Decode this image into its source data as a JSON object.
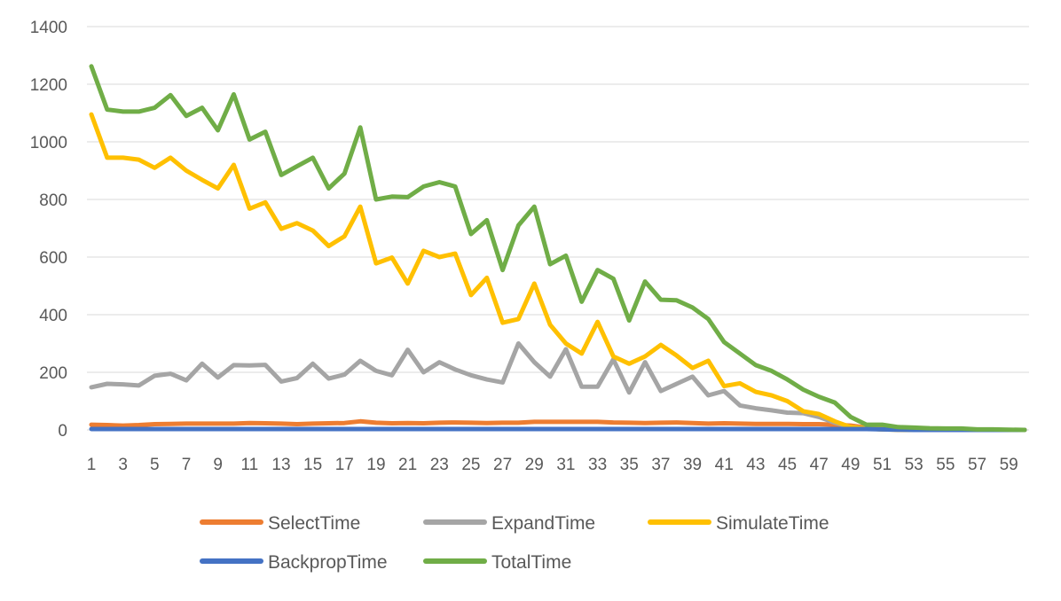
{
  "chart_data": {
    "type": "line",
    "title": "",
    "xlabel": "",
    "ylabel": "",
    "ylim": [
      0,
      1400
    ],
    "y_ticks": [
      0,
      200,
      400,
      600,
      800,
      1000,
      1200,
      1400
    ],
    "x": [
      1,
      2,
      3,
      4,
      5,
      6,
      7,
      8,
      9,
      10,
      11,
      12,
      13,
      14,
      15,
      16,
      17,
      18,
      19,
      20,
      21,
      22,
      23,
      24,
      25,
      26,
      27,
      28,
      29,
      30,
      31,
      32,
      33,
      34,
      35,
      36,
      37,
      38,
      39,
      40,
      41,
      42,
      43,
      44,
      45,
      46,
      47,
      48,
      49,
      50,
      51,
      52,
      53,
      54,
      55,
      56,
      57,
      58,
      59,
      60
    ],
    "x_tick_labels": [
      "1",
      "3",
      "5",
      "7",
      "9",
      "11",
      "13",
      "15",
      "17",
      "19",
      "21",
      "23",
      "25",
      "27",
      "29",
      "31",
      "33",
      "35",
      "37",
      "39",
      "41",
      "43",
      "45",
      "47",
      "49",
      "51",
      "53",
      "55",
      "57",
      "59"
    ],
    "grid": true,
    "legend_position": "bottom",
    "series": [
      {
        "name": "SelectTime",
        "color": "#ED7D31",
        "values": [
          18,
          17,
          15,
          17,
          20,
          21,
          22,
          22,
          22,
          22,
          24,
          23,
          22,
          20,
          22,
          23,
          24,
          30,
          25,
          23,
          24,
          23,
          25,
          26,
          25,
          24,
          25,
          25,
          28,
          28,
          28,
          28,
          28,
          26,
          25,
          24,
          25,
          26,
          24,
          22,
          23,
          22,
          21,
          21,
          21,
          20,
          20,
          18,
          15,
          8,
          3,
          1,
          0,
          0,
          0,
          0,
          0,
          0,
          0,
          0
        ]
      },
      {
        "name": "ExpandTime",
        "color": "#A5A5A5",
        "values": [
          148,
          160,
          158,
          154,
          188,
          195,
          172,
          230,
          182,
          225,
          224,
          226,
          168,
          180,
          230,
          178,
          192,
          240,
          205,
          190,
          278,
          200,
          235,
          210,
          190,
          175,
          165,
          300,
          235,
          185,
          280,
          150,
          150,
          245,
          130,
          235,
          135,
          160,
          185,
          120,
          135,
          85,
          75,
          68,
          60,
          58,
          45,
          25,
          10,
          5,
          2,
          1,
          0,
          0,
          0,
          0,
          0,
          0,
          0,
          0
        ]
      },
      {
        "name": "SimulateTime",
        "color": "#FFC000",
        "values": [
          1095,
          945,
          945,
          938,
          910,
          945,
          900,
          868,
          838,
          920,
          768,
          790,
          698,
          718,
          692,
          638,
          672,
          775,
          578,
          598,
          508,
          622,
          600,
          612,
          468,
          528,
          372,
          385,
          508,
          365,
          300,
          265,
          375,
          255,
          230,
          255,
          295,
          258,
          215,
          240,
          152,
          162,
          132,
          120,
          100,
          65,
          55,
          30,
          10,
          5,
          2,
          1,
          0,
          0,
          0,
          0,
          0,
          0,
          0,
          0
        ]
      },
      {
        "name": "BackpropTime",
        "color": "#4472C4",
        "values": [
          3,
          3,
          3,
          3,
          3,
          3,
          3,
          3,
          3,
          3,
          3,
          3,
          3,
          3,
          3,
          3,
          3,
          3,
          3,
          3,
          3,
          3,
          3,
          3,
          3,
          3,
          3,
          3,
          3,
          3,
          3,
          3,
          3,
          3,
          3,
          3,
          3,
          3,
          3,
          3,
          3,
          3,
          3,
          3,
          3,
          3,
          3,
          3,
          3,
          3,
          2,
          1,
          0,
          0,
          0,
          0,
          0,
          0,
          0,
          0
        ]
      },
      {
        "name": "TotalTime",
        "color": "#70AD47",
        "values": [
          1262,
          1112,
          1105,
          1105,
          1118,
          1162,
          1090,
          1118,
          1040,
          1165,
          1008,
          1035,
          885,
          915,
          945,
          838,
          890,
          1050,
          800,
          810,
          808,
          845,
          860,
          845,
          680,
          728,
          555,
          710,
          775,
          575,
          605,
          445,
          555,
          525,
          380,
          515,
          452,
          450,
          425,
          385,
          305,
          265,
          225,
          205,
          175,
          140,
          115,
          95,
          45,
          18,
          18,
          10,
          8,
          6,
          5,
          5,
          2,
          2,
          1,
          0
        ]
      }
    ]
  }
}
